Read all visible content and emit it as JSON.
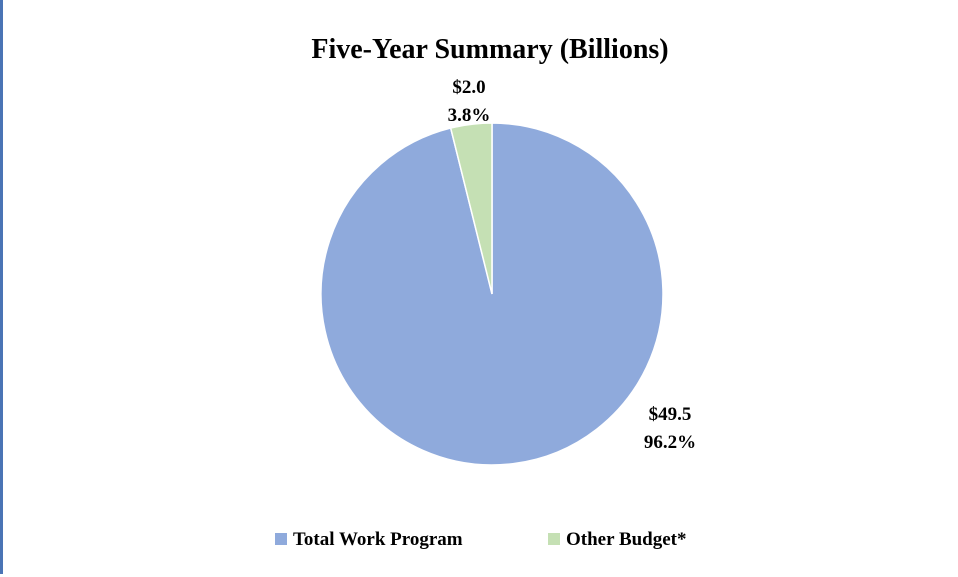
{
  "chart_data": {
    "type": "pie",
    "title": "Five-Year Summary (Billions)",
    "slices": [
      {
        "name": "Total Work Program",
        "value": 49.5,
        "percent": 96.2,
        "value_label": "$49.5",
        "percent_label": "96.2%",
        "color": "#8faadc"
      },
      {
        "name": "Other Budget*",
        "value": 2.0,
        "percent": 3.8,
        "value_label": "$2.0",
        "percent_label": "3.8%",
        "color": "#c5e0b4"
      }
    ],
    "start_angle_deg": 0,
    "direction": "clockwise",
    "legend_position": "bottom"
  },
  "colors": {
    "frame_border": "#4a74b5",
    "slice_stroke": "#ffffff"
  }
}
